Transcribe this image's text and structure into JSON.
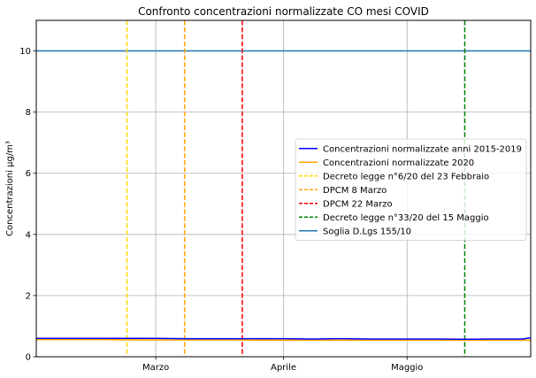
{
  "chart_data": {
    "type": "line",
    "title": "Confronto concentrazioni normalizzate CO mesi COVID",
    "xlabel": "",
    "ylabel": "Concentrazioni µg/m³",
    "x_range": [
      "2020-02-01",
      "2020-05-31"
    ],
    "ylim": [
      0,
      11
    ],
    "y_ticks": [
      0,
      2,
      4,
      6,
      8,
      10
    ],
    "x_ticks": [
      {
        "date": "2020-03-01",
        "label": "Marzo"
      },
      {
        "date": "2020-04-01",
        "label": "Aprile"
      },
      {
        "date": "2020-05-01",
        "label": "Maggio"
      }
    ],
    "grid": true,
    "legend_position": "center-right",
    "series": [
      {
        "name": "Concentrazioni normalizzate anni 2015-2019",
        "color": "#0000ff",
        "style": "solid",
        "x": [
          "2020-02-01",
          "2020-02-08",
          "2020-02-15",
          "2020-02-22",
          "2020-03-01",
          "2020-03-08",
          "2020-03-15",
          "2020-03-22",
          "2020-04-01",
          "2020-04-08",
          "2020-04-15",
          "2020-04-22",
          "2020-05-01",
          "2020-05-08",
          "2020-05-15",
          "2020-05-22",
          "2020-05-29",
          "2020-05-31"
        ],
        "y": [
          0.6,
          0.6,
          0.6,
          0.6,
          0.6,
          0.59,
          0.59,
          0.59,
          0.59,
          0.58,
          0.59,
          0.58,
          0.58,
          0.58,
          0.57,
          0.58,
          0.58,
          0.62
        ]
      },
      {
        "name": "Concentrazioni normalizzate 2020",
        "color": "#ffa500",
        "style": "solid",
        "x": [
          "2020-02-01",
          "2020-02-15",
          "2020-03-01",
          "2020-03-15",
          "2020-04-01",
          "2020-04-15",
          "2020-05-01",
          "2020-05-15",
          "2020-05-31"
        ],
        "y": [
          0.56,
          0.56,
          0.55,
          0.55,
          0.54,
          0.54,
          0.54,
          0.54,
          0.54
        ]
      }
    ],
    "vertical_lines": [
      {
        "name": "Decreto legge n°6/20 del 23 Febbraio",
        "date": "2020-02-23",
        "color": "#ffd700",
        "style": "dashed"
      },
      {
        "name": "DPCM 8 Marzo",
        "date": "2020-03-08",
        "color": "#ffa500",
        "style": "dashed"
      },
      {
        "name": "DPCM 22 Marzo",
        "date": "2020-03-22",
        "color": "#ff0000",
        "style": "dashed"
      },
      {
        "name": "Decreto legge n°33/20 del 15 Maggio",
        "date": "2020-05-15",
        "color": "#008000",
        "style": "dashed"
      }
    ],
    "horizontal_lines": [
      {
        "name": "Soglia D.Lgs 155/10",
        "value": 10,
        "color": "#1f77b4",
        "style": "solid"
      }
    ]
  }
}
